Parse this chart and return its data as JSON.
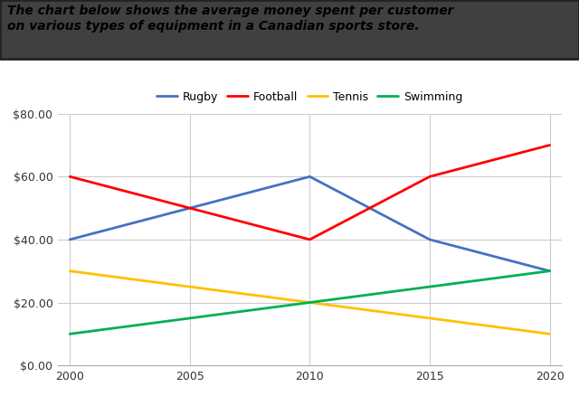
{
  "years": [
    2000,
    2005,
    2010,
    2015,
    2020
  ],
  "series": {
    "Rugby": [
      40,
      50,
      60,
      40,
      30
    ],
    "Football": [
      60,
      50,
      40,
      60,
      70
    ],
    "Tennis": [
      30,
      25,
      20,
      15,
      10
    ],
    "Swimming": [
      10,
      15,
      20,
      25,
      30
    ]
  },
  "colors": {
    "Rugby": "#4472C4",
    "Football": "#FF0000",
    "Tennis": "#FFC000",
    "Swimming": "#00B050"
  },
  "title_line1": "The chart below shows the average money spent per customer",
  "title_line2": "on various types of equipment in a Canadian sports store.",
  "ylim": [
    0,
    80
  ],
  "yticks": [
    0,
    20,
    40,
    60,
    80
  ],
  "plot_bg": "#FFFFFF",
  "title_box_bg": "#404040",
  "title_box_edge": "#222222",
  "title_text_color": "#000000",
  "fig_bg": "#FFFFFF"
}
